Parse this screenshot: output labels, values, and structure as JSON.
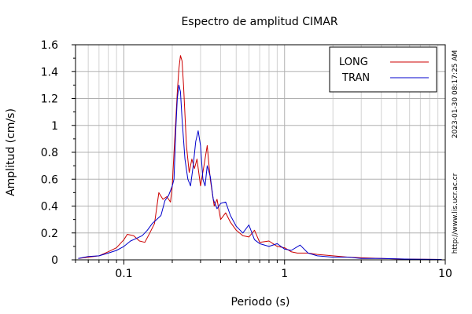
{
  "chart_data": {
    "type": "line",
    "title": "Espectro de amplitud CIMAR",
    "xlabel": "Periodo (s)",
    "ylabel": "Amplitud (cm/s)",
    "x_scale": "log",
    "xlim": [
      0.05,
      10
    ],
    "ylim": [
      0,
      1.6
    ],
    "x_tick_labels": [
      "0.1",
      "1",
      "10"
    ],
    "y_tick_labels": [
      "0",
      "0.2",
      "0.4",
      "0.6",
      "0.8",
      "1",
      "1.2",
      "1.4",
      "1.6"
    ],
    "grid": true,
    "legend_position": "top-right",
    "side_text_timestamp": "2023-01-30 08:17:25 AM",
    "side_text_url": "http://www.lis.ucr.ac.cr",
    "series": [
      {
        "name": "LONG",
        "color": "#cc0000",
        "points": [
          [
            0.052,
            0.01
          ],
          [
            0.06,
            0.02
          ],
          [
            0.07,
            0.03
          ],
          [
            0.08,
            0.06
          ],
          [
            0.09,
            0.09
          ],
          [
            0.1,
            0.15
          ],
          [
            0.105,
            0.19
          ],
          [
            0.115,
            0.18
          ],
          [
            0.125,
            0.14
          ],
          [
            0.135,
            0.13
          ],
          [
            0.145,
            0.2
          ],
          [
            0.155,
            0.27
          ],
          [
            0.165,
            0.5
          ],
          [
            0.175,
            0.45
          ],
          [
            0.185,
            0.47
          ],
          [
            0.195,
            0.43
          ],
          [
            0.2,
            0.55
          ],
          [
            0.205,
            0.8
          ],
          [
            0.21,
            1.02
          ],
          [
            0.215,
            1.25
          ],
          [
            0.22,
            1.42
          ],
          [
            0.225,
            1.52
          ],
          [
            0.23,
            1.48
          ],
          [
            0.235,
            1.3
          ],
          [
            0.245,
            0.85
          ],
          [
            0.255,
            0.65
          ],
          [
            0.265,
            0.75
          ],
          [
            0.275,
            0.68
          ],
          [
            0.285,
            0.75
          ],
          [
            0.3,
            0.55
          ],
          [
            0.315,
            0.7
          ],
          [
            0.33,
            0.85
          ],
          [
            0.345,
            0.6
          ],
          [
            0.365,
            0.4
          ],
          [
            0.38,
            0.45
          ],
          [
            0.4,
            0.3
          ],
          [
            0.43,
            0.35
          ],
          [
            0.46,
            0.28
          ],
          [
            0.5,
            0.22
          ],
          [
            0.55,
            0.18
          ],
          [
            0.6,
            0.17
          ],
          [
            0.65,
            0.22
          ],
          [
            0.7,
            0.13
          ],
          [
            0.8,
            0.14
          ],
          [
            0.9,
            0.1
          ],
          [
            1.0,
            0.09
          ],
          [
            1.1,
            0.06
          ],
          [
            1.2,
            0.05
          ],
          [
            1.4,
            0.05
          ],
          [
            1.6,
            0.04
          ],
          [
            2.0,
            0.03
          ],
          [
            2.5,
            0.02
          ],
          [
            3.0,
            0.015
          ],
          [
            4.0,
            0.01
          ],
          [
            6.0,
            0.005
          ],
          [
            9.5,
            0.003
          ]
        ]
      },
      {
        "name": "TRAN",
        "color": "#0000cc",
        "points": [
          [
            0.052,
            0.01
          ],
          [
            0.06,
            0.025
          ],
          [
            0.07,
            0.03
          ],
          [
            0.08,
            0.05
          ],
          [
            0.09,
            0.07
          ],
          [
            0.1,
            0.1
          ],
          [
            0.11,
            0.14
          ],
          [
            0.12,
            0.16
          ],
          [
            0.13,
            0.18
          ],
          [
            0.14,
            0.22
          ],
          [
            0.15,
            0.27
          ],
          [
            0.16,
            0.3
          ],
          [
            0.17,
            0.33
          ],
          [
            0.18,
            0.44
          ],
          [
            0.19,
            0.48
          ],
          [
            0.2,
            0.55
          ],
          [
            0.205,
            0.6
          ],
          [
            0.21,
            0.95
          ],
          [
            0.215,
            1.2
          ],
          [
            0.22,
            1.3
          ],
          [
            0.225,
            1.25
          ],
          [
            0.23,
            1.05
          ],
          [
            0.24,
            0.75
          ],
          [
            0.25,
            0.6
          ],
          [
            0.26,
            0.55
          ],
          [
            0.27,
            0.7
          ],
          [
            0.28,
            0.88
          ],
          [
            0.29,
            0.96
          ],
          [
            0.3,
            0.85
          ],
          [
            0.31,
            0.6
          ],
          [
            0.32,
            0.55
          ],
          [
            0.33,
            0.7
          ],
          [
            0.345,
            0.62
          ],
          [
            0.36,
            0.45
          ],
          [
            0.38,
            0.38
          ],
          [
            0.4,
            0.42
          ],
          [
            0.43,
            0.43
          ],
          [
            0.46,
            0.33
          ],
          [
            0.5,
            0.25
          ],
          [
            0.55,
            0.2
          ],
          [
            0.6,
            0.26
          ],
          [
            0.65,
            0.15
          ],
          [
            0.7,
            0.12
          ],
          [
            0.8,
            0.1
          ],
          [
            0.9,
            0.12
          ],
          [
            1.0,
            0.08
          ],
          [
            1.1,
            0.07
          ],
          [
            1.25,
            0.11
          ],
          [
            1.4,
            0.05
          ],
          [
            1.6,
            0.03
          ],
          [
            2.0,
            0.02
          ],
          [
            2.5,
            0.02
          ],
          [
            3.0,
            0.01
          ],
          [
            4.0,
            0.01
          ],
          [
            6.0,
            0.005
          ],
          [
            9.5,
            0.003
          ]
        ]
      }
    ]
  }
}
